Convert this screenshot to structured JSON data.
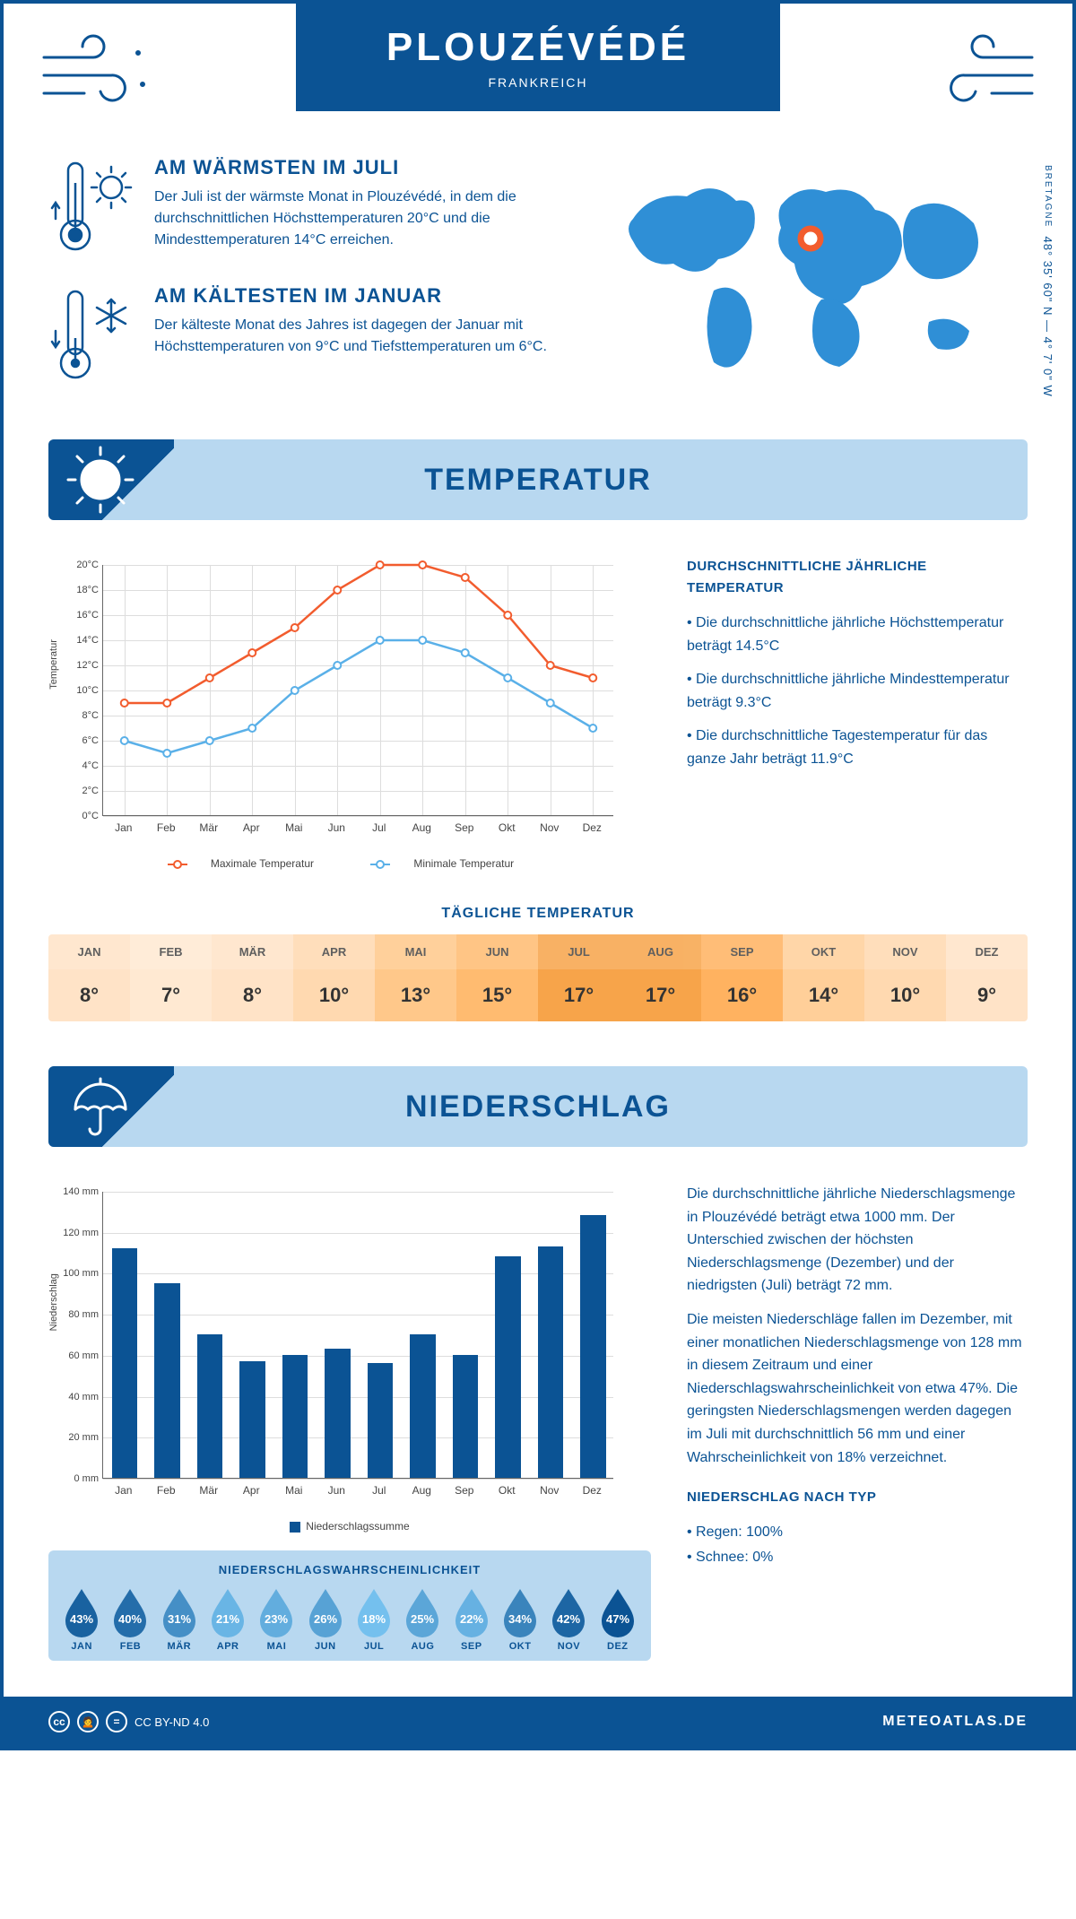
{
  "header": {
    "city": "PLOUZÉVÉDÉ",
    "country": "FRANKREICH"
  },
  "coords": {
    "region": "BRETAGNE",
    "lat": "48° 35' 60\" N",
    "lon": "4° 7' 0\" W"
  },
  "facts": {
    "warm": {
      "title": "AM WÄRMSTEN IM JULI",
      "text": "Der Juli ist der wärmste Monat in Plouzévédé, in dem die durchschnittlichen Höchsttemperaturen 20°C und die Mindesttemperaturen 14°C erreichen."
    },
    "cold": {
      "title": "AM KÄLTESTEN IM JANUAR",
      "text": "Der kälteste Monat des Jahres ist dagegen der Januar mit Höchsttemperaturen von 9°C und Tiefsttemperaturen um 6°C."
    }
  },
  "months_short": [
    "Jan",
    "Feb",
    "Mär",
    "Apr",
    "Mai",
    "Jun",
    "Jul",
    "Aug",
    "Sep",
    "Okt",
    "Nov",
    "Dez"
  ],
  "months_upper": [
    "JAN",
    "FEB",
    "MÄR",
    "APR",
    "MAI",
    "JUN",
    "JUL",
    "AUG",
    "SEP",
    "OKT",
    "NOV",
    "DEZ"
  ],
  "temp_section": {
    "title": "TEMPERATUR",
    "chart": {
      "ylabel": "Temperatur",
      "ymin": 0,
      "ymax": 20,
      "ystep": 2,
      "ysuffix": "°C",
      "max_series": [
        9,
        9,
        11,
        13,
        15,
        18,
        20,
        20,
        19,
        16,
        12,
        11
      ],
      "min_series": [
        6,
        5,
        6,
        7,
        10,
        12,
        14,
        14,
        13,
        11,
        9,
        7
      ],
      "max_color": "#f25c2e",
      "min_color": "#5ab0e8",
      "grid_color": "#dddddd",
      "legend_max": "Maximale Temperatur",
      "legend_min": "Minimale Temperatur"
    },
    "side": {
      "heading": "DURCHSCHNITTLICHE JÄHRLICHE TEMPERATUR",
      "b1": "• Die durchschnittliche jährliche Höchsttemperatur beträgt 14.5°C",
      "b2": "• Die durchschnittliche jährliche Mindesttemperatur beträgt 9.3°C",
      "b3": "• Die durchschnittliche Tagestemperatur für das ganze Jahr beträgt 11.9°C"
    },
    "daily": {
      "title": "TÄGLICHE TEMPERATUR",
      "values": [
        "8°",
        "7°",
        "8°",
        "10°",
        "13°",
        "15°",
        "17°",
        "17°",
        "16°",
        "14°",
        "10°",
        "9°"
      ],
      "colors": [
        "#ffe3c7",
        "#ffe9d2",
        "#ffe3c7",
        "#ffd9b0",
        "#ffc88a",
        "#ffbb70",
        "#f7a44a",
        "#f7a44a",
        "#ffb260",
        "#ffcf99",
        "#ffd9b0",
        "#ffe3c7"
      ]
    }
  },
  "precip_section": {
    "title": "NIEDERSCHLAG",
    "chart": {
      "ylabel": "Niederschlag",
      "ymin": 0,
      "ymax": 140,
      "ystep": 20,
      "ysuffix": " mm",
      "values": [
        112,
        95,
        70,
        57,
        60,
        63,
        56,
        70,
        60,
        108,
        113,
        128
      ],
      "bar_color": "#0b5394",
      "grid_color": "#dddddd",
      "legend": "Niederschlagssumme"
    },
    "side": {
      "p1": "Die durchschnittliche jährliche Niederschlagsmenge in Plouzévédé beträgt etwa 1000 mm. Der Unterschied zwischen der höchsten Niederschlagsmenge (Dezember) und der niedrigsten (Juli) beträgt 72 mm.",
      "p2": "Die meisten Niederschläge fallen im Dezember, mit einer monatlichen Niederschlagsmenge von 128 mm in diesem Zeitraum und einer Niederschlagswahrscheinlichkeit von etwa 47%. Die geringsten Niederschlagsmengen werden dagegen im Juli mit durchschnittlich 56 mm und einer Wahrscheinlichkeit von 18% verzeichnet.",
      "type_heading": "NIEDERSCHLAG NACH TYP",
      "type1": "• Regen: 100%",
      "type2": "• Schnee: 0%"
    },
    "probability": {
      "title": "NIEDERSCHLAGSWAHRSCHEINLICHKEIT",
      "values": [
        43,
        40,
        31,
        21,
        23,
        26,
        18,
        25,
        22,
        34,
        42,
        47
      ],
      "min_color": "#74c0ee",
      "max_color": "#0b5394"
    }
  },
  "footer": {
    "license": "CC BY-ND 4.0",
    "brand": "METEOATLAS.DE"
  }
}
